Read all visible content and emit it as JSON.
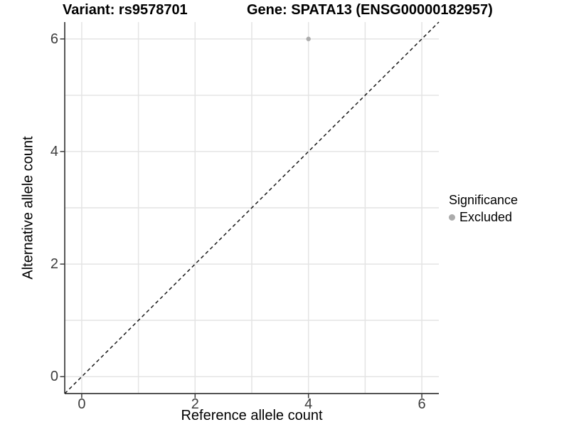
{
  "figure": {
    "title_left": "Variant: rs9578701",
    "title_right": "Gene: SPATA13 (ENSG00000182957)"
  },
  "chart_data": {
    "type": "scatter",
    "title": "Variant: rs9578701        Gene: SPATA13 (ENSG00000182957)",
    "xlabel": "Reference allele count",
    "ylabel": "Alternative allele count",
    "xlim": [
      -0.3,
      6.3
    ],
    "ylim": [
      -0.3,
      6.3
    ],
    "grid": true,
    "grid_breaks": [
      0,
      1,
      2,
      3,
      4,
      5,
      6
    ],
    "x_ticks": [
      0,
      2,
      4,
      6
    ],
    "y_ticks": [
      0,
      2,
      4,
      6
    ],
    "legend_position": "right",
    "series": [
      {
        "name": "Excluded",
        "marker": "circle",
        "color": "#ababab",
        "points": [
          {
            "x": 4,
            "y": 6
          }
        ]
      }
    ],
    "reference_line": {
      "slope": 1,
      "intercept": 0,
      "style": "dashed",
      "color": "#1a1a1a"
    }
  },
  "legend": {
    "title": "Significance",
    "items": [
      {
        "label": "Excluded",
        "color": "#ababab"
      }
    ]
  },
  "colors": {
    "background": "#ffffff",
    "grid": "#e4e4e4",
    "axis_line": "#3c3c3c",
    "tick_mark": "#3c3c3c",
    "tick_text": "#3d3d3d",
    "point": "#ababab"
  }
}
